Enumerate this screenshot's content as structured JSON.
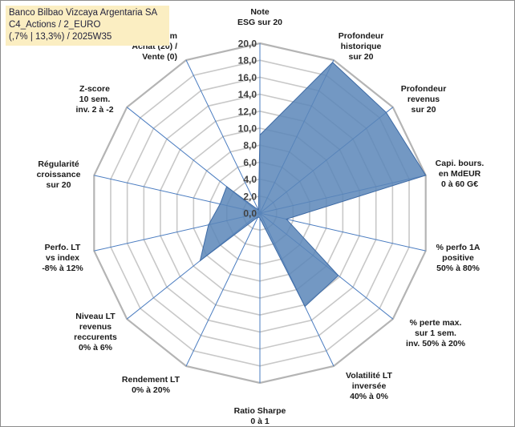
{
  "title_lines": [
    "Banco Bilbao Vizcaya Argentaria SA",
    "C4_Actions / 2_EURO",
    "(,7% | 13,3%) / 2025W35"
  ],
  "colors": {
    "fill": "#5b86b8",
    "stroke": "#3d6aa5",
    "grid": "#c8c8c8",
    "outer_ring": "#b4b4b4",
    "spoke": "#4a7cc0",
    "title_bg": "#fbeec2"
  },
  "chart_data": {
    "type": "radar",
    "rmin": 0,
    "rmax": 20,
    "tick_step": 2,
    "tick_labels": [
      "0,0",
      "2,0",
      "4,0",
      "6,0",
      "8,0",
      "10,0",
      "12,0",
      "14,0",
      "16,0",
      "18,0",
      "20,0"
    ],
    "axes": [
      {
        "label": [
          "Note",
          "ESG sur 20"
        ],
        "value": 9.2
      },
      {
        "label": [
          "Profondeur",
          "historique",
          "sur 20"
        ],
        "value": 19.7
      },
      {
        "label": [
          "Profondeur",
          "revenus",
          "sur 20"
        ],
        "value": 19.0
      },
      {
        "label": [
          "Capi. bours.",
          "en MdEUR",
          "0 à 60 G€"
        ],
        "value": 20.0
      },
      {
        "label": [
          "% perfo 1A",
          "positive",
          "50% à 80%"
        ],
        "value": 3.2
      },
      {
        "label": [
          "% perte max.",
          "sur 1 sem.",
          "inv. 50% à 20%"
        ],
        "value": 11.8
      },
      {
        "label": [
          "Volatilité LT",
          "inversée",
          "40% à 0%"
        ],
        "value": 12.2
      },
      {
        "label": [
          "Ratio Sharpe",
          "0 à 1"
        ],
        "value": 0.6
      },
      {
        "label": [
          "Rendement LT",
          "0% à 20%"
        ],
        "value": 0.5
      },
      {
        "label": [
          "Niveau LT",
          "revenus",
          "reccurents",
          "0% à 6%"
        ],
        "value": 9.0
      },
      {
        "label": [
          "Perfo. LT",
          "vs index",
          "-8% à 12%"
        ],
        "value": 6.2
      },
      {
        "label": [
          "Régularité",
          "croissance",
          "sur 20"
        ],
        "value": 4.8
      },
      {
        "label": [
          "Z-score",
          "10 sem.",
          "inv. 2 à -2"
        ],
        "value": 5.0
      },
      {
        "label": [
          "Momentum",
          "Achat (20) /",
          "Vente (0)"
        ],
        "value": 0.4
      }
    ]
  }
}
